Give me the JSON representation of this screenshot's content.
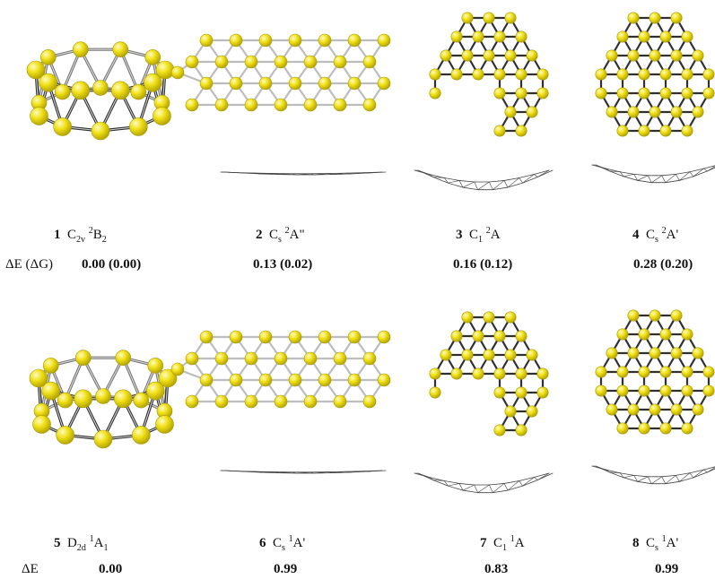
{
  "row_headers": [
    "ΔE (ΔG)",
    "ΔE"
  ],
  "structures": [
    {
      "number": "1",
      "pg_main": "C",
      "pg_sub": "2v",
      "mult": "2",
      "state": "B",
      "state_sub": "2",
      "energy": "0.00 (0.00)"
    },
    {
      "number": "2",
      "pg_main": "C",
      "pg_sub": "s",
      "mult": "2",
      "state": "A\"",
      "state_sub": "",
      "energy": "0.13 (0.02)"
    },
    {
      "number": "3",
      "pg_main": "C",
      "pg_sub": "1",
      "mult": "2",
      "state": "A",
      "state_sub": "",
      "energy": "0.16 (0.12)"
    },
    {
      "number": "4",
      "pg_main": "C",
      "pg_sub": "s",
      "mult": "2",
      "state": "A'",
      "state_sub": "",
      "energy": "0.28 (0.20)"
    },
    {
      "number": "5",
      "pg_main": "D",
      "pg_sub": "2d",
      "mult": "1",
      "state": "A",
      "state_sub": "1",
      "energy": "0.00"
    },
    {
      "number": "6",
      "pg_main": "C",
      "pg_sub": "s",
      "mult": "1",
      "state": "A'",
      "state_sub": "",
      "energy": "0.99"
    },
    {
      "number": "7",
      "pg_main": "C",
      "pg_sub": "1",
      "mult": "1",
      "state": "A",
      "state_sub": "",
      "energy": "0.83"
    },
    {
      "number": "8",
      "pg_main": "C",
      "pg_sub": "s",
      "mult": "1",
      "state": "A'",
      "state_sub": "",
      "energy": "0.99"
    }
  ],
  "colors": {
    "atom": "#f2e21a",
    "atom_edge": "#a89b08",
    "bond_front": "#3a3a3a",
    "bond_back": "#bdbdbd",
    "side_view": "#444444"
  }
}
